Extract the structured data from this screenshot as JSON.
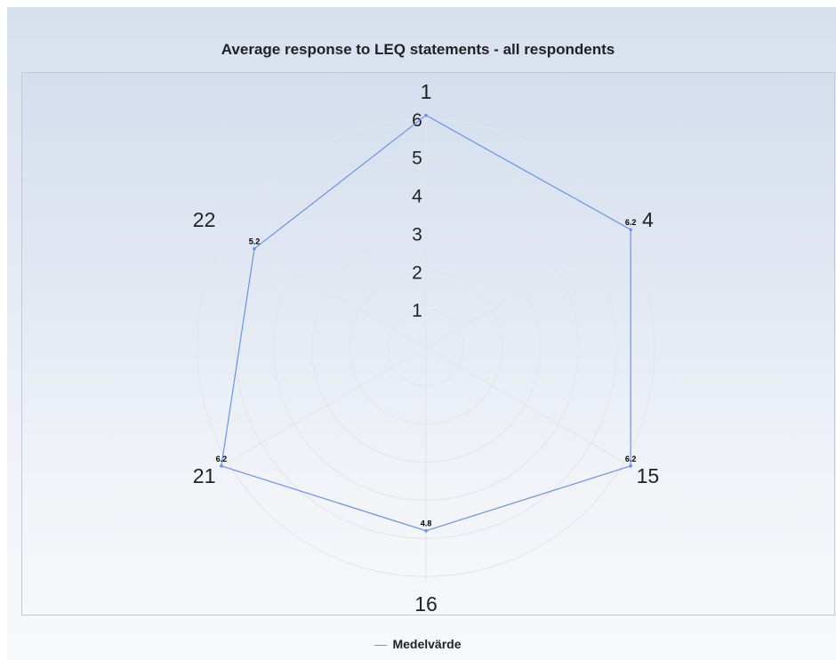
{
  "chart_data": {
    "type": "radar",
    "title": "Average response to LEQ statements - all respondents",
    "categories": [
      "1",
      "4",
      "15",
      "16",
      "21",
      "22"
    ],
    "series": [
      {
        "name": "Medelvärde",
        "values": [
          6.1,
          6.2,
          6.2,
          4.8,
          6.2,
          5.2
        ],
        "color": "#6495ed"
      }
    ],
    "data_labels": [
      "",
      "6.2",
      "6.2",
      "4.8",
      "6.2",
      "5.2"
    ],
    "radial_ticks": [
      "1",
      "2",
      "3",
      "4",
      "5",
      "6"
    ],
    "rlim": [
      0,
      7
    ],
    "grid": true,
    "legend_position": "bottom-center"
  }
}
